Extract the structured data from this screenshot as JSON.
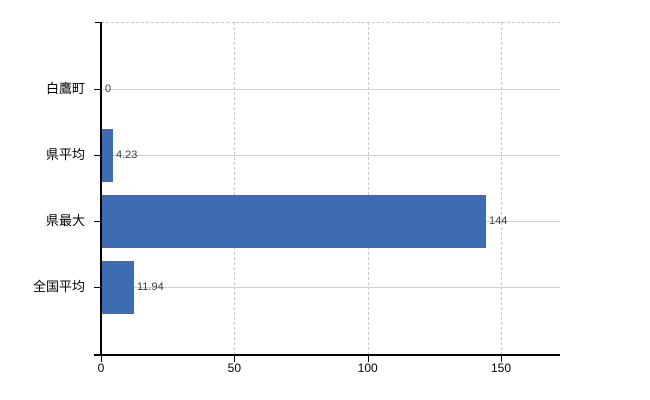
{
  "chart_data": {
    "type": "bar",
    "orientation": "horizontal",
    "title": "",
    "categories": [
      "白鷹町",
      "県平均",
      "県最大",
      "全国平均"
    ],
    "values": [
      0,
      4.23,
      144,
      11.94
    ],
    "value_labels": [
      "0",
      "4.23",
      "144",
      "11.94"
    ],
    "x_tick_labels": [
      "0",
      "50",
      "100",
      "150"
    ],
    "x_tick_values": [
      0,
      50,
      100,
      150
    ],
    "xlim": [
      0,
      172
    ],
    "grid": true,
    "legend_visible": false,
    "colors": {
      "bar": "#3d6cb2",
      "axis": "#000000",
      "horizontal_gridline": "#cbd3c9",
      "vertical_gridline": "#c9c9c9",
      "plot_border": "#c6c6c6",
      "value_label": "#3c3c3c",
      "category_label": "#000000",
      "background": "#ffffff"
    }
  }
}
